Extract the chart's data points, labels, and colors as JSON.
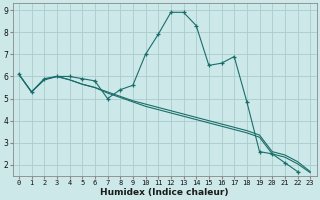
{
  "xlabel": "Humidex (Indice chaleur)",
  "bg_color": "#cce8e8",
  "grid_color": "#aacccc",
  "line_color": "#1a6e6a",
  "xlim": [
    -0.5,
    23.5
  ],
  "ylim": [
    1.5,
    9.3
  ],
  "yticks": [
    2,
    3,
    4,
    5,
    6,
    7,
    8,
    9
  ],
  "xticks": [
    0,
    1,
    2,
    3,
    4,
    5,
    6,
    7,
    8,
    9,
    10,
    11,
    12,
    13,
    14,
    15,
    16,
    17,
    18,
    19,
    20,
    21,
    22,
    23
  ],
  "tick_fontsize": 5.0,
  "xlabel_fontsize": 6.5,
  "series": [
    {
      "x": [
        0,
        1,
        2,
        3,
        4,
        5,
        6,
        7,
        8,
        9,
        10,
        11,
        12,
        13,
        14,
        15,
        16,
        17,
        18,
        19,
        20,
        21,
        22
      ],
      "y": [
        6.1,
        5.3,
        5.9,
        6.0,
        6.0,
        5.9,
        5.8,
        5.0,
        5.4,
        5.6,
        7.0,
        7.9,
        8.9,
        8.9,
        8.3,
        6.5,
        6.6,
        6.9,
        4.85,
        2.6,
        2.5,
        2.1,
        1.7
      ],
      "has_markers": true
    },
    {
      "x": [
        0,
        1,
        2,
        3,
        4,
        5,
        6,
        7,
        8,
        9,
        10,
        11,
        12,
        13,
        14,
        15,
        16,
        17,
        18,
        19,
        20,
        21,
        22,
        23
      ],
      "y": [
        6.1,
        5.3,
        5.85,
        6.0,
        5.85,
        5.65,
        5.5,
        5.3,
        5.1,
        4.9,
        4.75,
        4.6,
        4.45,
        4.3,
        4.15,
        4.0,
        3.85,
        3.7,
        3.55,
        3.35,
        2.6,
        2.45,
        2.15,
        1.7
      ],
      "has_markers": false
    },
    {
      "x": [
        0,
        1,
        2,
        3,
        4,
        5,
        6,
        7,
        8,
        9,
        10,
        11,
        12,
        13,
        14,
        15,
        16,
        17,
        18,
        19,
        20,
        21,
        22,
        23
      ],
      "y": [
        6.1,
        5.3,
        5.85,
        6.0,
        5.85,
        5.65,
        5.5,
        5.25,
        5.05,
        4.85,
        4.65,
        4.5,
        4.35,
        4.2,
        4.05,
        3.9,
        3.75,
        3.6,
        3.45,
        3.25,
        2.5,
        2.35,
        2.05,
        1.65
      ],
      "has_markers": false
    }
  ]
}
